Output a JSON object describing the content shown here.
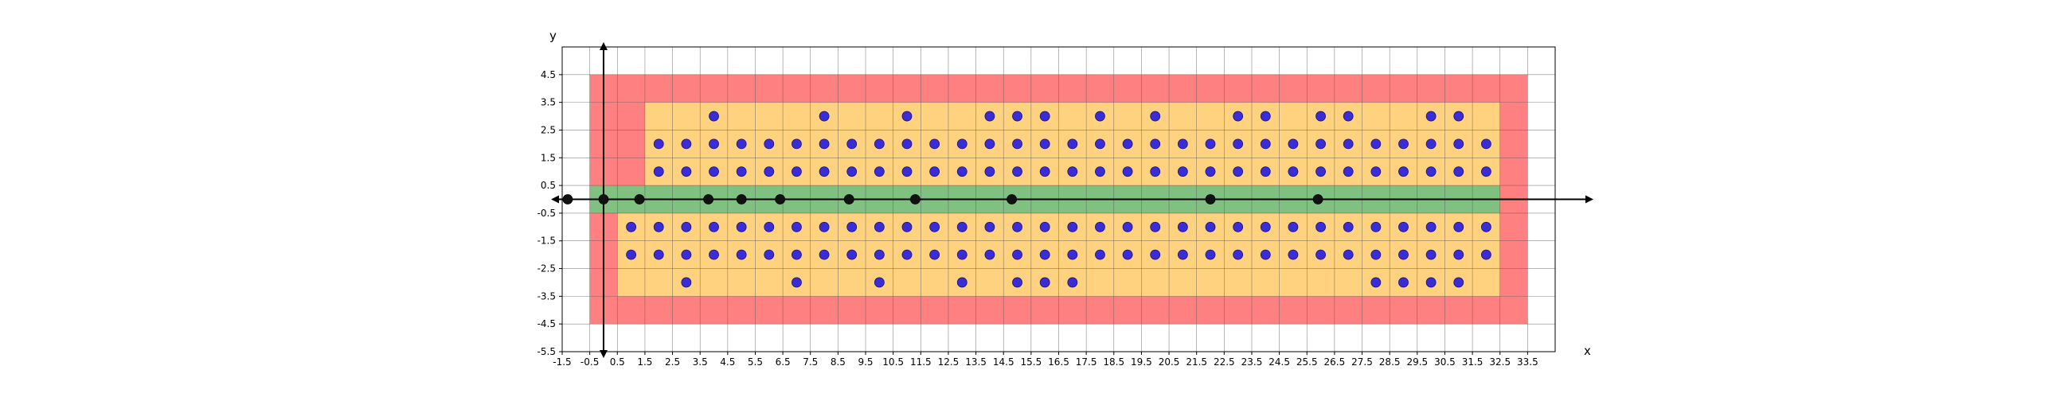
{
  "chart_data": {
    "type": "scatter",
    "title": "",
    "xlabel": "x",
    "ylabel": "y",
    "xlim": [
      -1.5,
      34.5
    ],
    "ylim": [
      -5.5,
      5.5
    ],
    "xticks": [
      -1.5,
      -0.5,
      0.5,
      1.5,
      2.5,
      3.5,
      4.5,
      5.5,
      6.5,
      7.5,
      8.5,
      9.5,
      10.5,
      11.5,
      12.5,
      13.5,
      14.5,
      15.5,
      16.5,
      17.5,
      18.5,
      19.5,
      20.5,
      21.5,
      22.5,
      23.5,
      24.5,
      25.5,
      26.5,
      27.5,
      28.5,
      29.5,
      30.5,
      31.5,
      32.5,
      33.5
    ],
    "xtick_labels": [
      "-1.5",
      "-0.5",
      "0.5",
      "1.5",
      "2.5",
      "3.5",
      "4.5",
      "5.5",
      "6.5",
      "7.5",
      "8.5",
      "9.5",
      "10.5",
      "11.5",
      "12.5",
      "13.5",
      "14.5",
      "15.5",
      "16.5",
      "17.5",
      "18.5",
      "19.5",
      "20.5",
      "21.5",
      "22.5",
      "23.5",
      "24.5",
      "25.5",
      "26.5",
      "27.5",
      "28.5",
      "29.5",
      "30.5",
      "31.5",
      "32.5",
      "33.5"
    ],
    "yticks": [
      -5.5,
      -4.5,
      -3.5,
      -2.5,
      -1.5,
      -0.5,
      0.5,
      1.5,
      2.5,
      3.5,
      4.5
    ],
    "ytick_labels": [
      "-5.5",
      "-4.5",
      "-3.5",
      "-2.5",
      "-1.5",
      "-0.5",
      "0.5",
      "1.5",
      "2.5",
      "3.5",
      "4.5"
    ],
    "grid": true,
    "regions": [
      {
        "color": "#ff8080",
        "x0": -0.5,
        "x1": 33.5,
        "y0": -4.5,
        "y1": 4.5
      },
      {
        "color": "#ffd280",
        "x0": 1.5,
        "x1": 32.5,
        "y0": 0.5,
        "y1": 3.5
      },
      {
        "color": "#ffd280",
        "x0": 0.5,
        "x1": 32.5,
        "y0": -3.5,
        "y1": -0.5
      },
      {
        "color": "#80c080",
        "x0": -0.5,
        "x1": 32.5,
        "y0": -0.5,
        "y1": 0.5
      }
    ],
    "series": [
      {
        "color": "#3a2dd6",
        "points": [
          [
            4,
            3
          ],
          [
            8,
            3
          ],
          [
            11,
            3
          ],
          [
            14,
            3
          ],
          [
            15,
            3
          ],
          [
            16,
            3
          ],
          [
            18,
            3
          ],
          [
            20,
            3
          ],
          [
            23,
            3
          ],
          [
            24,
            3
          ],
          [
            26,
            3
          ],
          [
            27,
            3
          ],
          [
            30,
            3
          ],
          [
            31,
            3
          ],
          [
            2,
            2
          ],
          [
            3,
            2
          ],
          [
            4,
            2
          ],
          [
            5,
            2
          ],
          [
            6,
            2
          ],
          [
            7,
            2
          ],
          [
            8,
            2
          ],
          [
            9,
            2
          ],
          [
            10,
            2
          ],
          [
            11,
            2
          ],
          [
            12,
            2
          ],
          [
            13,
            2
          ],
          [
            14,
            2
          ],
          [
            15,
            2
          ],
          [
            16,
            2
          ],
          [
            17,
            2
          ],
          [
            18,
            2
          ],
          [
            19,
            2
          ],
          [
            20,
            2
          ],
          [
            21,
            2
          ],
          [
            22,
            2
          ],
          [
            23,
            2
          ],
          [
            24,
            2
          ],
          [
            25,
            2
          ],
          [
            26,
            2
          ],
          [
            27,
            2
          ],
          [
            28,
            2
          ],
          [
            29,
            2
          ],
          [
            30,
            2
          ],
          [
            31,
            2
          ],
          [
            32,
            2
          ],
          [
            2,
            1
          ],
          [
            3,
            1
          ],
          [
            4,
            1
          ],
          [
            5,
            1
          ],
          [
            6,
            1
          ],
          [
            7,
            1
          ],
          [
            8,
            1
          ],
          [
            9,
            1
          ],
          [
            10,
            1
          ],
          [
            11,
            1
          ],
          [
            12,
            1
          ],
          [
            13,
            1
          ],
          [
            14,
            1
          ],
          [
            15,
            1
          ],
          [
            16,
            1
          ],
          [
            17,
            1
          ],
          [
            18,
            1
          ],
          [
            19,
            1
          ],
          [
            20,
            1
          ],
          [
            21,
            1
          ],
          [
            22,
            1
          ],
          [
            23,
            1
          ],
          [
            24,
            1
          ],
          [
            25,
            1
          ],
          [
            26,
            1
          ],
          [
            27,
            1
          ],
          [
            28,
            1
          ],
          [
            29,
            1
          ],
          [
            30,
            1
          ],
          [
            31,
            1
          ],
          [
            32,
            1
          ],
          [
            1,
            -1
          ],
          [
            2,
            -1
          ],
          [
            3,
            -1
          ],
          [
            4,
            -1
          ],
          [
            5,
            -1
          ],
          [
            6,
            -1
          ],
          [
            7,
            -1
          ],
          [
            8,
            -1
          ],
          [
            9,
            -1
          ],
          [
            10,
            -1
          ],
          [
            11,
            -1
          ],
          [
            12,
            -1
          ],
          [
            13,
            -1
          ],
          [
            14,
            -1
          ],
          [
            15,
            -1
          ],
          [
            16,
            -1
          ],
          [
            17,
            -1
          ],
          [
            18,
            -1
          ],
          [
            19,
            -1
          ],
          [
            20,
            -1
          ],
          [
            21,
            -1
          ],
          [
            22,
            -1
          ],
          [
            23,
            -1
          ],
          [
            24,
            -1
          ],
          [
            25,
            -1
          ],
          [
            26,
            -1
          ],
          [
            27,
            -1
          ],
          [
            28,
            -1
          ],
          [
            29,
            -1
          ],
          [
            30,
            -1
          ],
          [
            31,
            -1
          ],
          [
            32,
            -1
          ],
          [
            1,
            -2
          ],
          [
            2,
            -2
          ],
          [
            3,
            -2
          ],
          [
            4,
            -2
          ],
          [
            5,
            -2
          ],
          [
            6,
            -2
          ],
          [
            7,
            -2
          ],
          [
            8,
            -2
          ],
          [
            9,
            -2
          ],
          [
            10,
            -2
          ],
          [
            11,
            -2
          ],
          [
            12,
            -2
          ],
          [
            13,
            -2
          ],
          [
            14,
            -2
          ],
          [
            15,
            -2
          ],
          [
            16,
            -2
          ],
          [
            17,
            -2
          ],
          [
            18,
            -2
          ],
          [
            19,
            -2
          ],
          [
            20,
            -2
          ],
          [
            21,
            -2
          ],
          [
            22,
            -2
          ],
          [
            23,
            -2
          ],
          [
            24,
            -2
          ],
          [
            25,
            -2
          ],
          [
            26,
            -2
          ],
          [
            27,
            -2
          ],
          [
            28,
            -2
          ],
          [
            29,
            -2
          ],
          [
            30,
            -2
          ],
          [
            31,
            -2
          ],
          [
            32,
            -2
          ],
          [
            3,
            -3
          ],
          [
            7,
            -3
          ],
          [
            10,
            -3
          ],
          [
            13,
            -3
          ],
          [
            15,
            -3
          ],
          [
            16,
            -3
          ],
          [
            17,
            -3
          ],
          [
            28,
            -3
          ],
          [
            29,
            -3
          ],
          [
            30,
            -3
          ],
          [
            31,
            -3
          ]
        ]
      },
      {
        "color": "#111111",
        "points": [
          [
            -1.3,
            0
          ],
          [
            0,
            0
          ],
          [
            1.3,
            0
          ],
          [
            3.8,
            0
          ],
          [
            5,
            0
          ],
          [
            6.4,
            0
          ],
          [
            8.9,
            0
          ],
          [
            11.3,
            0
          ],
          [
            14.8,
            0
          ],
          [
            22,
            0
          ],
          [
            25.9,
            0
          ]
        ]
      }
    ]
  }
}
